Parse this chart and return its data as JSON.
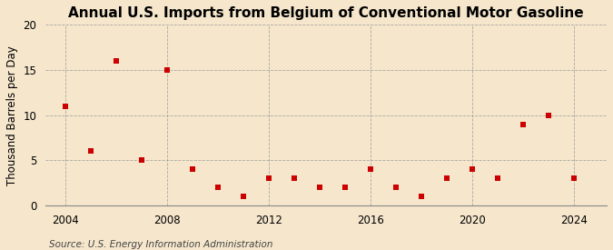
{
  "title": "Annual U.S. Imports from Belgium of Conventional Motor Gasoline",
  "ylabel": "Thousand Barrels per Day",
  "source": "Source: U.S. Energy Information Administration",
  "years": [
    2004,
    2005,
    2006,
    2007,
    2008,
    2009,
    2010,
    2011,
    2012,
    2013,
    2014,
    2015,
    2016,
    2017,
    2018,
    2019,
    2020,
    2021,
    2022,
    2023,
    2024
  ],
  "values": [
    11,
    6,
    16,
    5,
    15,
    4,
    2,
    1,
    3,
    3,
    2,
    2,
    4,
    2,
    1,
    3,
    4,
    3,
    9,
    10,
    3
  ],
  "marker_color": "#cc0000",
  "marker_size": 14,
  "bg_color": "#f5e6cc",
  "grid_color": "#999999",
  "xlim": [
    2003.2,
    2025.3
  ],
  "ylim": [
    0,
    20
  ],
  "yticks": [
    0,
    5,
    10,
    15,
    20
  ],
  "xticks": [
    2004,
    2008,
    2012,
    2016,
    2020,
    2024
  ],
  "title_fontsize": 11,
  "label_fontsize": 8.5,
  "tick_fontsize": 8.5,
  "source_fontsize": 7.5
}
